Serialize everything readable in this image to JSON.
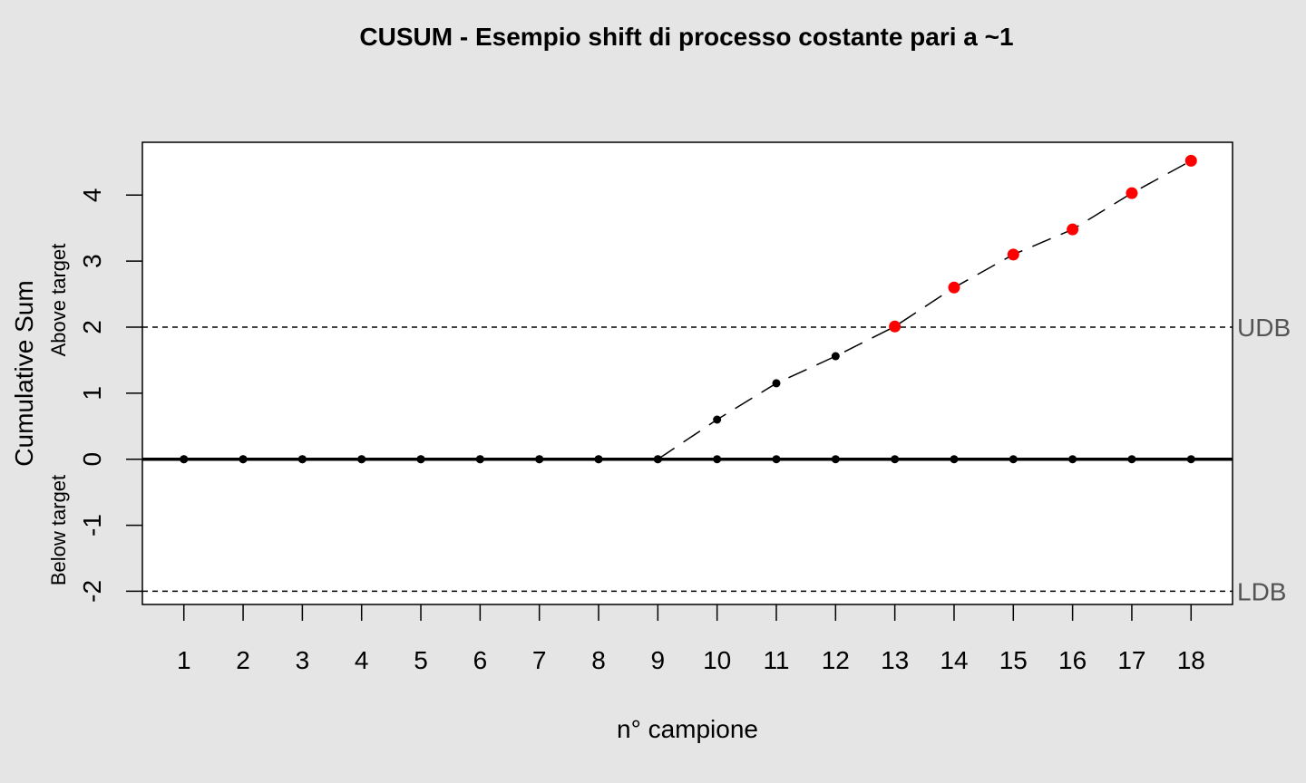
{
  "chart_data": {
    "type": "line",
    "title": "CUSUM - Esempio shift di processo costante pari a ~1",
    "xlabel": "n° campione",
    "ylabel": "Cumulative Sum",
    "ylabel_above": "Above target",
    "ylabel_below": "Below target",
    "ylim": [
      -2.2,
      4.8
    ],
    "xlim": [
      0.3,
      18.7
    ],
    "x_ticks": [
      1,
      2,
      3,
      4,
      5,
      6,
      7,
      8,
      9,
      10,
      11,
      12,
      13,
      14,
      15,
      16,
      17,
      18
    ],
    "y_ticks": [
      -2,
      -1,
      0,
      1,
      2,
      3,
      4
    ],
    "upper_limit": {
      "value": 2,
      "label": "UDB"
    },
    "lower_limit": {
      "value": -2,
      "label": "LDB"
    },
    "series": [
      {
        "x": [
          1,
          2,
          3,
          4,
          5,
          6,
          7,
          8,
          9,
          10,
          11,
          12,
          13,
          14,
          15,
          16,
          17,
          18
        ],
        "values": [
          0,
          0,
          0,
          0,
          0,
          0,
          0,
          0,
          0,
          0.6,
          1.15,
          1.56,
          2.01,
          2.6,
          3.1,
          3.48,
          4.03,
          4.52
        ]
      },
      {
        "x": [
          1,
          2,
          3,
          4,
          5,
          6,
          7,
          8,
          9,
          10,
          11,
          12,
          13,
          14,
          15,
          16,
          17,
          18
        ],
        "values": [
          0,
          0,
          0,
          0,
          0,
          0,
          0,
          0,
          0,
          0,
          0,
          0,
          0,
          0,
          0,
          0,
          0,
          0
        ]
      }
    ],
    "colors": {
      "in_control": "#000000",
      "out_of_control": "#ff0000",
      "background": "#e5e5e5",
      "plot_area": "#ffffff"
    },
    "grid": false
  }
}
